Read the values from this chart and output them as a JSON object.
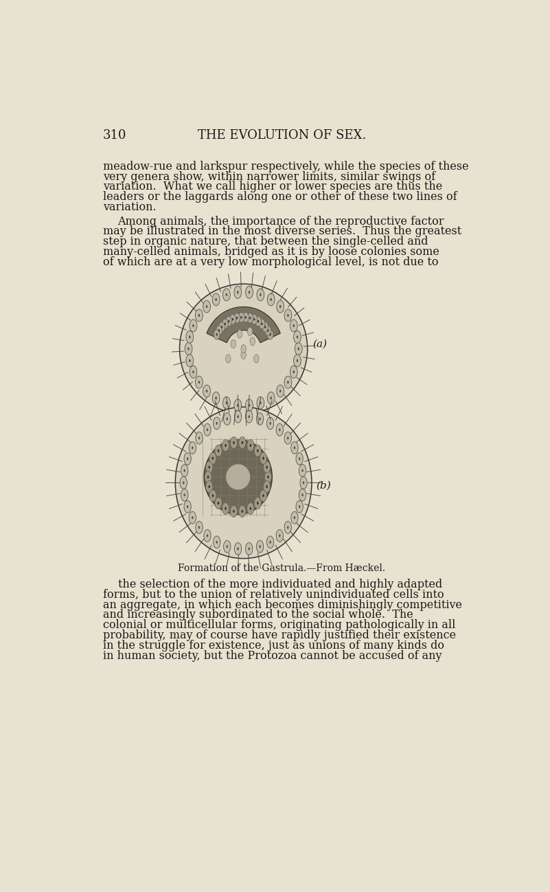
{
  "background_color": "#e8e3d0",
  "page_number": "310",
  "header_title": "THE EVOLUTION OF SEX.",
  "header_fontsize": 13,
  "body_fontsize": 11.5,
  "caption_fontsize": 10,
  "text_color": "#1a1a1a",
  "paragraph1": "meadow-rue and larkspur respectively, while the species of these\nvery genera show, within narrower limits, similar swings of\nvariation.  What we call higher or lower species are thus the\nleaders or the laggards along one or other of these two lines of\nvariation.",
  "paragraph2": "Among animals, the importance of the reproductive factor\nmay be illustrated in the most diverse series.  Thus the greatest\nstep in organic nature, that between the single-celled and\nmany-celled animals, bridged as it is by loose colonies some\nof which are at a very low morphological level, is not due to",
  "caption": "Formation of the Gastrula.—From Hæckel.",
  "paragraph3": "the selection of the more individuated and highly adapted\nforms, but to the union of relatively unindividuated cells into\nan aggregate, in which each becomes diminishingly competitive\nand increasingly subordinated to the social whole.  The\ncolonial or multicellular forms, originating pathologically in all\nprobability, may of course have rapidly justified their existence\nin the struggle for existence, just as unions of many kinds do\nin human society, but the Protozoa cannot be accused of any",
  "label_a": "(a)",
  "label_b": "(b)"
}
